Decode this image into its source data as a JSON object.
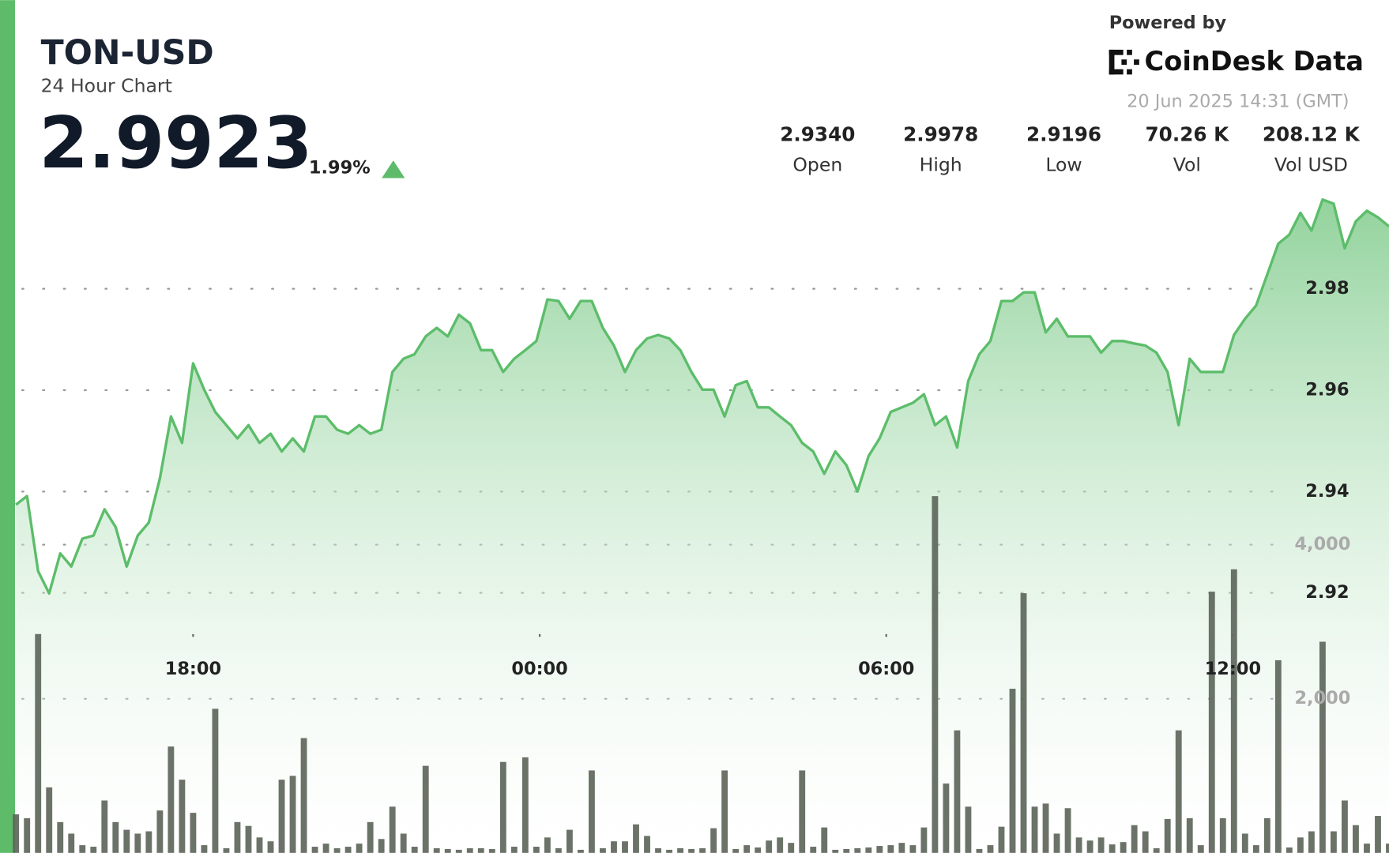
{
  "header": {
    "title": "TON-USD",
    "subtitle": "24 Hour Chart",
    "price": 2.9923,
    "change": "1.99%",
    "powered_by": "Powered by",
    "brand": "CoinDesk Data",
    "timestamp": "20 Jun 2025 14:31 (GMT)",
    "stats": [
      {
        "value": "2.9340",
        "label": "Open"
      },
      {
        "value": "2.9978",
        "label": "High"
      },
      {
        "value": "2.9196",
        "label": "Low"
      },
      {
        "value": "70.26 K",
        "label": "Vol"
      },
      {
        "value": "208.12 K",
        "label": "Vol USD"
      }
    ]
  },
  "chart_data": {
    "type": "line",
    "xlim": [
      0,
      124
    ],
    "xticks": [
      {
        "value": 16.0,
        "label": "18:00"
      },
      {
        "value": 47.3,
        "label": "00:00"
      },
      {
        "value": 78.6,
        "label": "06:00"
      },
      {
        "value": 109.9,
        "label": "12:00"
      }
    ],
    "ylim": [
      2.8687,
      2.9987
    ],
    "yticks": [
      2.92,
      2.94,
      2.96,
      2.98
    ],
    "y2lim": [
      0,
      8550
    ],
    "y2ticks": [
      {
        "value": 2000,
        "label": "2,000"
      },
      {
        "value": 4000,
        "label": "4,000"
      }
    ],
    "grid": true,
    "series": [
      {
        "name": "Price",
        "color": "#5cbd6a",
        "values": [
          2.9374,
          2.9391,
          2.9243,
          2.9199,
          2.9278,
          2.9252,
          2.9307,
          2.9313,
          2.9365,
          2.933,
          2.9252,
          2.9313,
          2.9339,
          2.9426,
          2.9548,
          2.9496,
          2.9653,
          2.9601,
          2.9557,
          2.9531,
          2.9505,
          2.9531,
          2.9496,
          2.9514,
          2.9479,
          2.9505,
          2.9479,
          2.9548,
          2.9548,
          2.9522,
          2.9514,
          2.9531,
          2.9514,
          2.9522,
          2.9636,
          2.9662,
          2.9671,
          2.9706,
          2.9723,
          2.9706,
          2.9749,
          2.9732,
          2.9679,
          2.9679,
          2.9636,
          2.9662,
          2.9679,
          2.9697,
          2.9779,
          2.9776,
          2.9741,
          2.9776,
          2.9776,
          2.9723,
          2.9688,
          2.9636,
          2.9679,
          2.9702,
          2.9709,
          2.9702,
          2.9679,
          2.9636,
          2.9601,
          2.9601,
          2.9548,
          2.961,
          2.9618,
          2.9566,
          2.9566,
          2.9548,
          2.9531,
          2.9496,
          2.9479,
          2.9435,
          2.9479,
          2.9452,
          2.94,
          2.947,
          2.9505,
          2.9557,
          2.9566,
          2.9575,
          2.9592,
          2.9531,
          2.9548,
          2.9487,
          2.9618,
          2.9671,
          2.9697,
          2.9776,
          2.9776,
          2.9793,
          2.9793,
          2.9714,
          2.9741,
          2.9706,
          2.9706,
          2.9706,
          2.9674,
          2.9697,
          2.9697,
          2.9692,
          2.9688,
          2.9674,
          2.9636,
          2.9531,
          2.9662,
          2.9636,
          2.9636,
          2.9636,
          2.9709,
          2.9741,
          2.9767,
          2.9828,
          2.9889,
          2.9907,
          2.995,
          2.9915,
          2.9976,
          2.9968,
          2.988,
          2.9933,
          2.9954,
          2.9941,
          2.9923
        ]
      },
      {
        "name": "Volume",
        "color": "#5b6459",
        "axis": "y2",
        "values": [
          500,
          450,
          2840,
          850,
          400,
          250,
          100,
          80,
          680,
          400,
          300,
          250,
          280,
          550,
          1380,
          950,
          520,
          100,
          1870,
          60,
          400,
          350,
          200,
          150,
          950,
          1000,
          1490,
          80,
          120,
          60,
          80,
          120,
          400,
          180,
          600,
          250,
          80,
          1130,
          60,
          50,
          40,
          60,
          60,
          50,
          1180,
          80,
          1240,
          80,
          200,
          60,
          300,
          40,
          1070,
          60,
          150,
          150,
          370,
          220,
          60,
          40,
          60,
          50,
          60,
          320,
          1070,
          50,
          100,
          70,
          160,
          200,
          130,
          1070,
          80,
          330,
          40,
          50,
          60,
          70,
          90,
          100,
          130,
          100,
          330,
          4630,
          900,
          1590,
          600,
          50,
          100,
          340,
          2130,
          3370,
          600,
          640,
          250,
          580,
          200,
          160,
          200,
          110,
          140,
          360,
          280,
          60,
          440,
          1590,
          450,
          100,
          3390,
          450,
          3680,
          250,
          100,
          450,
          2500,
          70,
          200,
          280,
          2740,
          280,
          680,
          360,
          120,
          480,
          120
        ]
      }
    ]
  }
}
